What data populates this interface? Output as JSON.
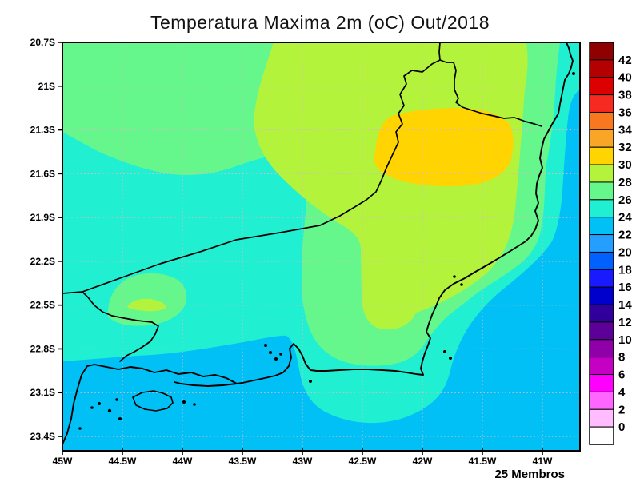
{
  "title": "Temperatura Maxima 2m (oC) Out/2018",
  "footer_note": "25 Membros",
  "axes": {
    "lat_labels": [
      "20.7S",
      "21S",
      "21.3S",
      "21.6S",
      "21.9S",
      "22.2S",
      "22.5S",
      "22.8S",
      "23.1S",
      "23.4S"
    ],
    "lon_labels": [
      "45W",
      "44.5W",
      "44W",
      "43.5W",
      "43W",
      "42.5W",
      "42W",
      "41.5W",
      "41W"
    ]
  },
  "colorbar": {
    "tick_labels": [
      "42",
      "40",
      "38",
      "36",
      "34",
      "32",
      "30",
      "28",
      "26",
      "24",
      "22",
      "20",
      "18",
      "16",
      "14",
      "12",
      "10",
      "8",
      "6",
      "4",
      "2",
      "0"
    ],
    "cell_colors_top_to_bottom": [
      "#8F0000",
      "#B40000",
      "#DC0000",
      "#F62A20",
      "#F87820",
      "#F9A526",
      "#FFD400",
      "#B4F33C",
      "#66F78C",
      "#20EFD2",
      "#00C0F5",
      "#259FFF",
      "#0061FF",
      "#1A1AFF",
      "#0000CD",
      "#30009C",
      "#5C0099",
      "#8F00A8",
      "#C400C4",
      "#FF00FF",
      "#FF66FF",
      "#FFBDFF",
      "#FFFFFF"
    ]
  },
  "map_colors": {
    "band_22_24": "#00C0F5",
    "band_24_26": "#20EFD2",
    "band_26_28": "#66F78C",
    "band_28_30": "#B4F33C",
    "band_30_32": "#FFD400",
    "grid": "#D9B9C1",
    "outline": "#000000"
  },
  "chart_data": {
    "type": "heatmap",
    "title": "Temperatura Maxima 2m (oC) Out/2018",
    "annotation": "25 Membros",
    "units": "oC",
    "xlabel": "",
    "ylabel": "",
    "x_ticks": [
      "45W",
      "44.5W",
      "44W",
      "43.5W",
      "43W",
      "42.5W",
      "42W",
      "41.5W",
      "41W"
    ],
    "y_ticks": [
      "20.7S",
      "21S",
      "21.3S",
      "21.6S",
      "21.9S",
      "22.2S",
      "22.5S",
      "22.8S",
      "23.1S",
      "23.4S"
    ],
    "colorbar_levels": [
      0,
      2,
      4,
      6,
      8,
      10,
      12,
      14,
      16,
      18,
      20,
      22,
      24,
      26,
      28,
      30,
      32,
      34,
      36,
      38,
      40,
      42
    ],
    "legend_position": "right",
    "grid": "dotted",
    "filled_bands_visible": [
      {
        "range_oC": "22-24",
        "color": "#00C0F5",
        "area": "southern offshore/ocean region, lower-left bays and strip along the far-right edge"
      },
      {
        "range_oC": "24-26",
        "color": "#20EFD2",
        "area": "west-edge wedge near 22S, coastal strip along the east coast and band between green and blue zones"
      },
      {
        "range_oC": "26-28",
        "color": "#66F78C",
        "area": "northwest block, frame around the warm interior, small patch near 22.4S 44.3W"
      },
      {
        "range_oC": "28-30",
        "color": "#B4F33C",
        "area": "large north-central and northeastern interior with tongue south near 42.3W"
      },
      {
        "range_oC": "30-32",
        "color": "#FFD400",
        "area": "warm core centered near 21.4S 42W"
      }
    ]
  }
}
